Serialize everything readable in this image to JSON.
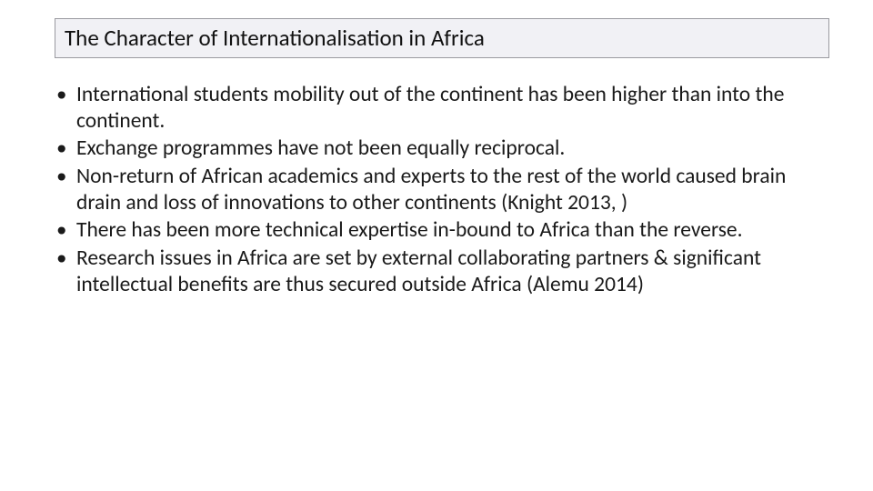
{
  "slide": {
    "title": "The Character of Internationalisation in Africa",
    "bullets": [
      "International students mobility out of the continent has been higher than into the continent.",
      "Exchange programmes have not been equally reciprocal.",
      "Non-return of African academics and experts to the rest of the world caused brain drain and loss of innovations to other continents (Knight 2013, )",
      "There has been more technical  expertise in-bound to Africa than the reverse.",
      "Research issues in Africa are set by external collaborating partners & significant intellectual benefits are thus secured outside Africa (Alemu 2014)"
    ]
  },
  "style": {
    "background_color": "#ffffff",
    "title_box_bg": "#f1f1f5",
    "title_box_border": "#9a9aa0",
    "title_fontsize": 25,
    "title_color": "#111111",
    "body_fontsize": 23.5,
    "body_color": "#1a1a1a",
    "bullet_char": "•",
    "font_family": "Calibri"
  }
}
